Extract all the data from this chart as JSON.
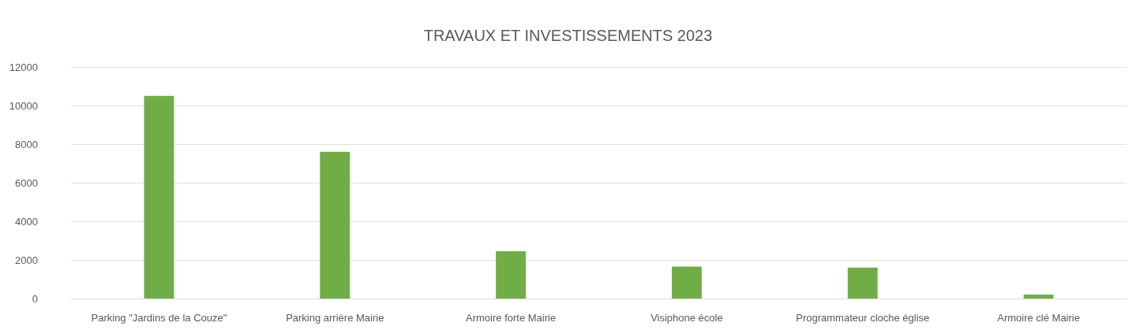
{
  "chart_data": {
    "type": "bar",
    "title": "TRAVAUX ET INVESTISSEMENTS 2023",
    "categories": [
      "Parking \"Jardins de la Couze\"",
      "Parking arrière Mairie",
      "Armoire forte Mairie",
      "Visiphone école",
      "Programmateur cloche église",
      "Armoire clé Mairie"
    ],
    "values": [
      10500,
      7600,
      2450,
      1650,
      1600,
      200
    ],
    "color": "#70ad47",
    "ylim": [
      0,
      12000
    ],
    "yticks": [
      0,
      2000,
      4000,
      6000,
      8000,
      10000,
      12000
    ],
    "grid": "y"
  }
}
